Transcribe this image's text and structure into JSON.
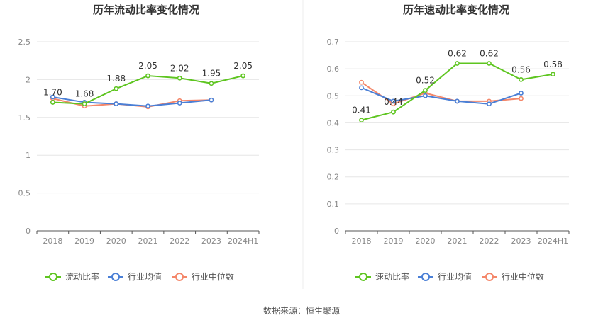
{
  "chart_data": [
    {
      "type": "line",
      "title": "历年流动比率变化情况",
      "categories": [
        "2018",
        "2019",
        "2020",
        "2021",
        "2022",
        "2023",
        "2024H1"
      ],
      "ylim": [
        0,
        2.5
      ],
      "yticks": [
        "0",
        "0.5",
        "1",
        "1.5",
        "2",
        "2.5"
      ],
      "ytick_values": [
        0,
        0.5,
        1,
        1.5,
        2,
        2.5
      ],
      "grid": true,
      "legend_position": "bottom",
      "series": [
        {
          "name": "流动比率",
          "color": "#5ec520",
          "values": [
            1.7,
            1.68,
            1.88,
            2.05,
            2.02,
            1.95,
            2.05
          ],
          "labels": [
            "1.70",
            "1.68",
            "1.88",
            "2.05",
            "2.02",
            "1.95",
            "2.05"
          ]
        },
        {
          "name": "行业均值",
          "color": "#4a7fd6",
          "values": [
            1.77,
            1.7,
            1.68,
            1.65,
            1.69,
            1.73,
            null
          ]
        },
        {
          "name": "行业中位数",
          "color": "#f4876a",
          "values": [
            1.75,
            1.65,
            1.68,
            1.64,
            1.72,
            1.73,
            null
          ]
        }
      ]
    },
    {
      "type": "line",
      "title": "历年速动比率变化情况",
      "categories": [
        "2018",
        "2019",
        "2020",
        "2021",
        "2022",
        "2023",
        "2024H1"
      ],
      "ylim": [
        0,
        0.7
      ],
      "yticks": [
        "0",
        "0.1",
        "0.2",
        "0.3",
        "0.4",
        "0.5",
        "0.6",
        "0.7"
      ],
      "ytick_values": [
        0,
        0.1,
        0.2,
        0.3,
        0.4,
        0.5,
        0.6,
        0.7
      ],
      "grid": true,
      "legend_position": "bottom",
      "series": [
        {
          "name": "速动比率",
          "color": "#5ec520",
          "values": [
            0.41,
            0.44,
            0.52,
            0.62,
            0.62,
            0.56,
            0.58
          ],
          "labels": [
            "0.41",
            "0.44",
            "0.52",
            "0.62",
            "0.62",
            "0.56",
            "0.58"
          ]
        },
        {
          "name": "行业均值",
          "color": "#4a7fd6",
          "values": [
            0.53,
            0.48,
            0.5,
            0.48,
            0.47,
            0.51,
            null
          ]
        },
        {
          "name": "行业中位数",
          "color": "#f4876a",
          "values": [
            0.55,
            0.47,
            0.51,
            0.48,
            0.48,
            0.49,
            null
          ]
        }
      ]
    }
  ],
  "source_text": "数据来源：恒生聚源"
}
